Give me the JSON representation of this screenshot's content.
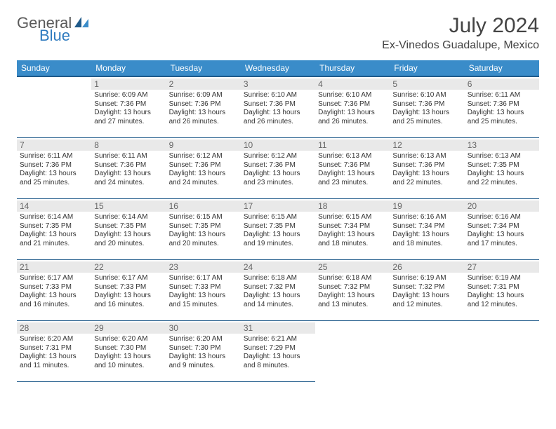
{
  "brand": {
    "general": "General",
    "blue": "Blue"
  },
  "title": "July 2024",
  "location": "Ex-Vinedos Guadalupe, Mexico",
  "day_headers": [
    "Sunday",
    "Monday",
    "Tuesday",
    "Wednesday",
    "Thursday",
    "Friday",
    "Saturday"
  ],
  "colors": {
    "header_bg": "#3a8cc9",
    "header_border": "#1f5a8a",
    "daynum_bg": "#e9e9e9",
    "text": "#333333",
    "logo_gray": "#5a5a5a",
    "logo_blue": "#2f7bbf"
  },
  "weeks": [
    [
      null,
      {
        "n": "1",
        "sr": "Sunrise: 6:09 AM",
        "ss": "Sunset: 7:36 PM",
        "d1": "Daylight: 13 hours",
        "d2": "and 27 minutes."
      },
      {
        "n": "2",
        "sr": "Sunrise: 6:09 AM",
        "ss": "Sunset: 7:36 PM",
        "d1": "Daylight: 13 hours",
        "d2": "and 26 minutes."
      },
      {
        "n": "3",
        "sr": "Sunrise: 6:10 AM",
        "ss": "Sunset: 7:36 PM",
        "d1": "Daylight: 13 hours",
        "d2": "and 26 minutes."
      },
      {
        "n": "4",
        "sr": "Sunrise: 6:10 AM",
        "ss": "Sunset: 7:36 PM",
        "d1": "Daylight: 13 hours",
        "d2": "and 26 minutes."
      },
      {
        "n": "5",
        "sr": "Sunrise: 6:10 AM",
        "ss": "Sunset: 7:36 PM",
        "d1": "Daylight: 13 hours",
        "d2": "and 25 minutes."
      },
      {
        "n": "6",
        "sr": "Sunrise: 6:11 AM",
        "ss": "Sunset: 7:36 PM",
        "d1": "Daylight: 13 hours",
        "d2": "and 25 minutes."
      }
    ],
    [
      {
        "n": "7",
        "sr": "Sunrise: 6:11 AM",
        "ss": "Sunset: 7:36 PM",
        "d1": "Daylight: 13 hours",
        "d2": "and 25 minutes."
      },
      {
        "n": "8",
        "sr": "Sunrise: 6:11 AM",
        "ss": "Sunset: 7:36 PM",
        "d1": "Daylight: 13 hours",
        "d2": "and 24 minutes."
      },
      {
        "n": "9",
        "sr": "Sunrise: 6:12 AM",
        "ss": "Sunset: 7:36 PM",
        "d1": "Daylight: 13 hours",
        "d2": "and 24 minutes."
      },
      {
        "n": "10",
        "sr": "Sunrise: 6:12 AM",
        "ss": "Sunset: 7:36 PM",
        "d1": "Daylight: 13 hours",
        "d2": "and 23 minutes."
      },
      {
        "n": "11",
        "sr": "Sunrise: 6:13 AM",
        "ss": "Sunset: 7:36 PM",
        "d1": "Daylight: 13 hours",
        "d2": "and 23 minutes."
      },
      {
        "n": "12",
        "sr": "Sunrise: 6:13 AM",
        "ss": "Sunset: 7:36 PM",
        "d1": "Daylight: 13 hours",
        "d2": "and 22 minutes."
      },
      {
        "n": "13",
        "sr": "Sunrise: 6:13 AM",
        "ss": "Sunset: 7:35 PM",
        "d1": "Daylight: 13 hours",
        "d2": "and 22 minutes."
      }
    ],
    [
      {
        "n": "14",
        "sr": "Sunrise: 6:14 AM",
        "ss": "Sunset: 7:35 PM",
        "d1": "Daylight: 13 hours",
        "d2": "and 21 minutes."
      },
      {
        "n": "15",
        "sr": "Sunrise: 6:14 AM",
        "ss": "Sunset: 7:35 PM",
        "d1": "Daylight: 13 hours",
        "d2": "and 20 minutes."
      },
      {
        "n": "16",
        "sr": "Sunrise: 6:15 AM",
        "ss": "Sunset: 7:35 PM",
        "d1": "Daylight: 13 hours",
        "d2": "and 20 minutes."
      },
      {
        "n": "17",
        "sr": "Sunrise: 6:15 AM",
        "ss": "Sunset: 7:35 PM",
        "d1": "Daylight: 13 hours",
        "d2": "and 19 minutes."
      },
      {
        "n": "18",
        "sr": "Sunrise: 6:15 AM",
        "ss": "Sunset: 7:34 PM",
        "d1": "Daylight: 13 hours",
        "d2": "and 18 minutes."
      },
      {
        "n": "19",
        "sr": "Sunrise: 6:16 AM",
        "ss": "Sunset: 7:34 PM",
        "d1": "Daylight: 13 hours",
        "d2": "and 18 minutes."
      },
      {
        "n": "20",
        "sr": "Sunrise: 6:16 AM",
        "ss": "Sunset: 7:34 PM",
        "d1": "Daylight: 13 hours",
        "d2": "and 17 minutes."
      }
    ],
    [
      {
        "n": "21",
        "sr": "Sunrise: 6:17 AM",
        "ss": "Sunset: 7:33 PM",
        "d1": "Daylight: 13 hours",
        "d2": "and 16 minutes."
      },
      {
        "n": "22",
        "sr": "Sunrise: 6:17 AM",
        "ss": "Sunset: 7:33 PM",
        "d1": "Daylight: 13 hours",
        "d2": "and 16 minutes."
      },
      {
        "n": "23",
        "sr": "Sunrise: 6:17 AM",
        "ss": "Sunset: 7:33 PM",
        "d1": "Daylight: 13 hours",
        "d2": "and 15 minutes."
      },
      {
        "n": "24",
        "sr": "Sunrise: 6:18 AM",
        "ss": "Sunset: 7:32 PM",
        "d1": "Daylight: 13 hours",
        "d2": "and 14 minutes."
      },
      {
        "n": "25",
        "sr": "Sunrise: 6:18 AM",
        "ss": "Sunset: 7:32 PM",
        "d1": "Daylight: 13 hours",
        "d2": "and 13 minutes."
      },
      {
        "n": "26",
        "sr": "Sunrise: 6:19 AM",
        "ss": "Sunset: 7:32 PM",
        "d1": "Daylight: 13 hours",
        "d2": "and 12 minutes."
      },
      {
        "n": "27",
        "sr": "Sunrise: 6:19 AM",
        "ss": "Sunset: 7:31 PM",
        "d1": "Daylight: 13 hours",
        "d2": "and 12 minutes."
      }
    ],
    [
      {
        "n": "28",
        "sr": "Sunrise: 6:20 AM",
        "ss": "Sunset: 7:31 PM",
        "d1": "Daylight: 13 hours",
        "d2": "and 11 minutes."
      },
      {
        "n": "29",
        "sr": "Sunrise: 6:20 AM",
        "ss": "Sunset: 7:30 PM",
        "d1": "Daylight: 13 hours",
        "d2": "and 10 minutes."
      },
      {
        "n": "30",
        "sr": "Sunrise: 6:20 AM",
        "ss": "Sunset: 7:30 PM",
        "d1": "Daylight: 13 hours",
        "d2": "and 9 minutes."
      },
      {
        "n": "31",
        "sr": "Sunrise: 6:21 AM",
        "ss": "Sunset: 7:29 PM",
        "d1": "Daylight: 13 hours",
        "d2": "and 8 minutes."
      },
      null,
      null,
      null
    ]
  ]
}
